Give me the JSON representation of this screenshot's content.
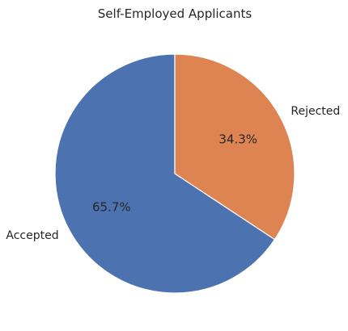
{
  "chart_data": {
    "type": "pie",
    "title": "Self-Employed Applicants",
    "categories": [
      "Accepted",
      "Rejected"
    ],
    "values": [
      65.7,
      34.3
    ],
    "value_labels": [
      "65.7%",
      "34.3%"
    ],
    "colors": [
      "#4c72b0",
      "#dd8452"
    ],
    "start_angle": "top",
    "direction": "counterclockwise",
    "legend": "none"
  }
}
